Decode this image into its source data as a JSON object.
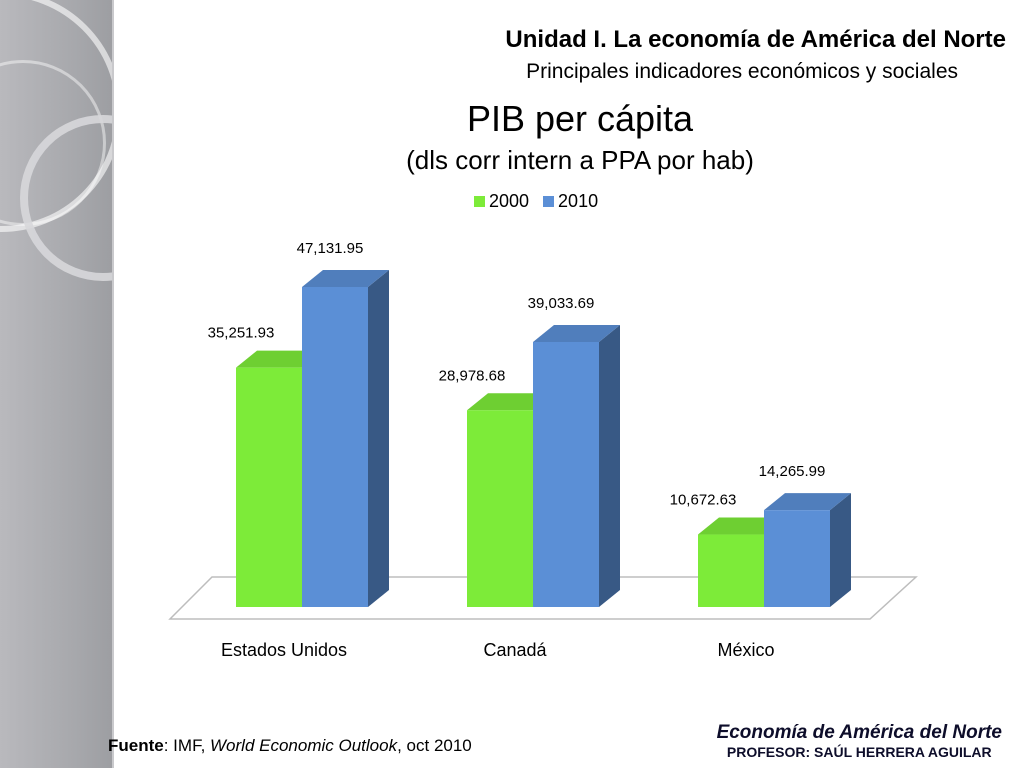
{
  "header": {
    "title": "Unidad I. La economía de América del Norte",
    "subtitle": "Principales indicadores económicos y sociales"
  },
  "chart_data": {
    "type": "bar",
    "title": "PIB per cápita",
    "subtitle": "(dls corr intern a PPA por hab)",
    "categories": [
      "Estados Unidos",
      "Canadá",
      "México"
    ],
    "series": [
      {
        "name": "2000",
        "values": [
          35251.93,
          28978.68,
          10672.63
        ],
        "labels": [
          "35,251.93",
          "28,978.68",
          "10,672.63"
        ],
        "color": "#7deb39"
      },
      {
        "name": "2010",
        "values": [
          47131.95,
          39033.69,
          14265.99
        ],
        "labels": [
          "47,131.95",
          "39,033.69",
          "14,265.99"
        ],
        "color": "#5b8fd6"
      }
    ],
    "legend_position": "top",
    "grid": false,
    "three_d": true
  },
  "source": {
    "label": "Fuente",
    "text_before": ": IMF, ",
    "publication": "World Economic Outlook",
    "text_after": ", oct 2010"
  },
  "footer": {
    "course": "Economía de América del Norte",
    "professor": "PROFESOR: SAÚL HERRERA AGUILAR"
  }
}
